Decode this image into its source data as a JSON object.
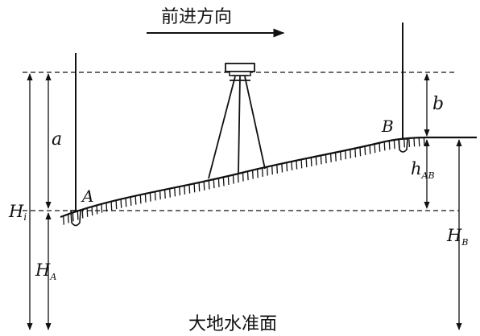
{
  "title": "前进方向",
  "datum_label": "大地水准面",
  "labels": {
    "point_a": "A",
    "point_b": "B",
    "reading_a": "a",
    "reading_b": "b",
    "h_i": "H",
    "h_i_sub": "i",
    "h_a": "H",
    "h_a_sub": "A",
    "h_b": "H",
    "h_b_sub": "B",
    "h_ab": "h",
    "h_ab_sub": "AB"
  }
}
